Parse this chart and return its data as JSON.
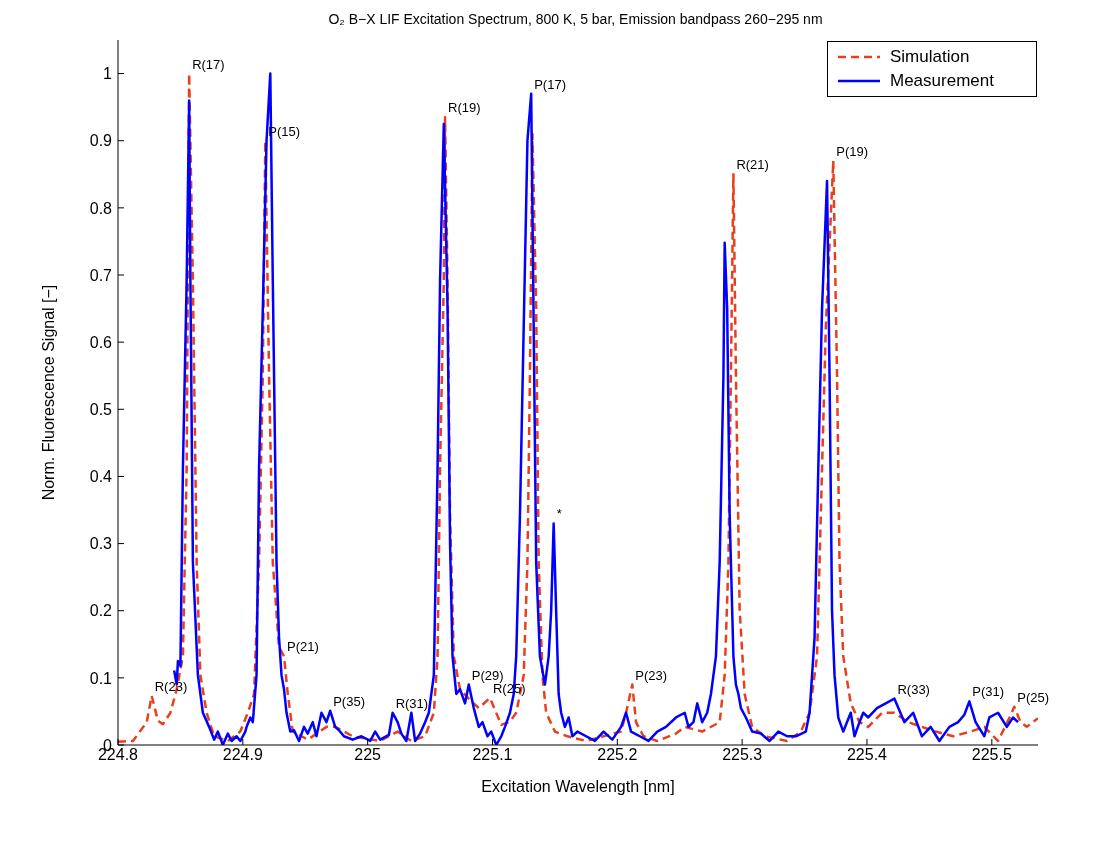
{
  "chart_data": {
    "type": "line",
    "title": "O₂ B−X LIF Excitation Spectrum, 800 K, 5 bar, Emission bandpass 260−295 nm",
    "xlabel": "Excitation Wavelength [nm]",
    "ylabel": "Norm. Fluorescence Signal [−]",
    "xlim": [
      224.8,
      225.537
    ],
    "xticks": [
      224.8,
      224.9,
      225,
      225.1,
      225.2,
      225.3,
      225.4,
      225.5
    ],
    "ylim": [
      0,
      1.05
    ],
    "yticks": [
      0,
      0.1,
      0.2,
      0.3,
      0.4,
      0.5,
      0.6,
      0.7,
      0.8,
      0.9,
      1
    ],
    "grid": false,
    "legend": "top right",
    "marker": "none",
    "series": [
      {
        "name": "Simulation",
        "color": "#e8401c",
        "line_style": "dashed",
        "x": [
          224.8,
          224.812,
          224.823,
          224.827,
          224.832,
          224.836,
          224.842,
          224.847,
          224.852,
          224.855,
          224.857,
          224.86,
          224.863,
          224.866,
          224.871,
          224.877,
          224.888,
          224.898,
          224.904,
          224.909,
          224.913,
          224.916,
          224.918,
          224.921,
          224.924,
          224.929,
          224.933,
          224.936,
          224.94,
          224.952,
          224.967,
          224.974,
          224.988,
          225.01,
          225.024,
          225.035,
          225.046,
          225.053,
          225.056,
          225.058,
          225.061,
          225.062,
          225.064,
          225.066,
          225.069,
          225.074,
          225.081,
          225.089,
          225.098,
          225.107,
          225.114,
          225.119,
          225.125,
          225.128,
          225.13,
          225.132,
          225.135,
          225.137,
          225.14,
          225.143,
          225.15,
          225.16,
          225.175,
          225.189,
          225.203,
          225.207,
          225.212,
          225.215,
          225.221,
          225.232,
          225.247,
          225.254,
          225.268,
          225.282,
          225.286,
          225.289,
          225.291,
          225.293,
          225.295,
          225.298,
          225.302,
          225.308,
          225.318,
          225.336,
          225.347,
          225.354,
          225.36,
          225.363,
          225.367,
          225.373,
          225.376,
          225.378,
          225.381,
          225.387,
          225.394,
          225.401,
          225.412,
          225.422,
          225.433,
          225.455,
          225.469,
          225.483,
          225.494,
          225.505,
          225.514,
          225.518,
          225.523,
          225.528,
          225.537
        ],
        "values": [
          0.005,
          0.006,
          0.034,
          0.073,
          0.036,
          0.031,
          0.048,
          0.083,
          0.132,
          0.413,
          1.0,
          0.689,
          0.272,
          0.104,
          0.048,
          0.013,
          0.006,
          0.02,
          0.048,
          0.076,
          0.272,
          0.552,
          0.9,
          0.552,
          0.272,
          0.146,
          0.132,
          0.076,
          0.02,
          0.008,
          0.027,
          0.027,
          0.013,
          0.006,
          0.02,
          0.006,
          0.013,
          0.048,
          0.132,
          0.413,
          0.692,
          0.935,
          0.692,
          0.342,
          0.132,
          0.083,
          0.069,
          0.055,
          0.07,
          0.03,
          0.035,
          0.048,
          0.104,
          0.272,
          0.552,
          0.91,
          0.65,
          0.272,
          0.104,
          0.048,
          0.02,
          0.013,
          0.006,
          0.013,
          0.02,
          0.048,
          0.09,
          0.034,
          0.013,
          0.006,
          0.017,
          0.027,
          0.02,
          0.034,
          0.104,
          0.272,
          0.552,
          0.85,
          0.552,
          0.202,
          0.076,
          0.027,
          0.013,
          0.006,
          0.02,
          0.048,
          0.132,
          0.342,
          0.622,
          0.87,
          0.552,
          0.272,
          0.132,
          0.062,
          0.034,
          0.027,
          0.048,
          0.048,
          0.034,
          0.02,
          0.013,
          0.02,
          0.027,
          0.006,
          0.04,
          0.057,
          0.034,
          0.027,
          0.04
        ]
      },
      {
        "name": "Measurement",
        "color": "#0000ff",
        "line_style": "solid",
        "x": [
          224.845,
          224.847,
          224.848,
          224.85,
          224.852,
          224.855,
          224.857,
          224.858,
          224.86,
          224.864,
          224.868,
          224.873,
          224.877,
          224.88,
          224.884,
          224.888,
          224.891,
          224.895,
          224.898,
          224.902,
          224.903,
          224.906,
          224.908,
          224.911,
          224.913,
          224.916,
          224.919,
          224.922,
          224.924,
          224.927,
          224.929,
          224.931,
          224.933,
          224.935,
          224.938,
          224.941,
          224.945,
          224.949,
          224.952,
          224.956,
          224.959,
          224.963,
          224.967,
          224.97,
          224.974,
          224.977,
          224.981,
          224.988,
          224.995,
          225.002,
          225.006,
          225.01,
          225.017,
          225.02,
          225.024,
          225.027,
          225.031,
          225.035,
          225.038,
          225.042,
          225.046,
          225.049,
          225.053,
          225.056,
          225.058,
          225.061,
          225.064,
          225.066,
          225.068,
          225.071,
          225.074,
          225.078,
          225.081,
          225.085,
          225.089,
          225.092,
          225.096,
          225.099,
          225.103,
          225.107,
          225.11,
          225.114,
          225.117,
          225.119,
          225.122,
          225.125,
          225.128,
          225.131,
          225.133,
          225.135,
          225.138,
          225.142,
          225.145,
          225.147,
          225.149,
          225.151,
          225.153,
          225.155,
          225.158,
          225.161,
          225.164,
          225.168,
          225.175,
          225.182,
          225.189,
          225.196,
          225.203,
          225.207,
          225.211,
          225.218,
          225.225,
          225.232,
          225.239,
          225.247,
          225.254,
          225.257,
          225.261,
          225.264,
          225.268,
          225.272,
          225.275,
          225.279,
          225.282,
          225.285,
          225.286,
          225.288,
          225.29,
          225.293,
          225.295,
          225.297,
          225.299,
          225.303,
          225.308,
          225.315,
          225.322,
          225.329,
          225.336,
          225.343,
          225.351,
          225.354,
          225.358,
          225.361,
          225.364,
          225.368,
          225.37,
          225.372,
          225.374,
          225.377,
          225.381,
          225.387,
          225.39,
          225.394,
          225.397,
          225.401,
          225.408,
          225.415,
          225.422,
          225.43,
          225.437,
          225.444,
          225.451,
          225.458,
          225.466,
          225.473,
          225.478,
          225.482,
          225.487,
          225.494,
          225.498,
          225.505,
          225.512,
          225.517,
          225.521
        ],
        "values": [
          0.111,
          0.09,
          0.125,
          0.118,
          0.412,
          0.692,
          0.96,
          0.692,
          0.272,
          0.104,
          0.048,
          0.027,
          0.008,
          0.02,
          0.0,
          0.017,
          0.006,
          0.013,
          0.006,
          0.02,
          0.027,
          0.041,
          0.034,
          0.104,
          0.412,
          0.65,
          0.9,
          1.0,
          0.692,
          0.272,
          0.16,
          0.104,
          0.083,
          0.048,
          0.02,
          0.022,
          0.006,
          0.027,
          0.017,
          0.034,
          0.013,
          0.048,
          0.034,
          0.051,
          0.027,
          0.022,
          0.013,
          0.008,
          0.013,
          0.006,
          0.02,
          0.008,
          0.015,
          0.048,
          0.034,
          0.017,
          0.006,
          0.048,
          0.006,
          0.017,
          0.034,
          0.048,
          0.104,
          0.412,
          0.692,
          0.925,
          0.65,
          0.3,
          0.132,
          0.076,
          0.083,
          0.062,
          0.09,
          0.055,
          0.027,
          0.034,
          0.013,
          0.02,
          0.0,
          0.013,
          0.027,
          0.048,
          0.076,
          0.132,
          0.342,
          0.622,
          0.9,
          0.97,
          0.622,
          0.272,
          0.132,
          0.09,
          0.132,
          0.2,
          0.33,
          0.2,
          0.076,
          0.048,
          0.027,
          0.041,
          0.013,
          0.02,
          0.013,
          0.006,
          0.02,
          0.008,
          0.027,
          0.048,
          0.02,
          0.013,
          0.006,
          0.02,
          0.027,
          0.041,
          0.048,
          0.027,
          0.034,
          0.062,
          0.034,
          0.048,
          0.076,
          0.132,
          0.272,
          0.55,
          0.748,
          0.65,
          0.342,
          0.132,
          0.09,
          0.076,
          0.055,
          0.041,
          0.02,
          0.017,
          0.006,
          0.02,
          0.013,
          0.013,
          0.02,
          0.048,
          0.16,
          0.412,
          0.65,
          0.84,
          0.552,
          0.2,
          0.104,
          0.041,
          0.02,
          0.048,
          0.013,
          0.034,
          0.048,
          0.041,
          0.055,
          0.062,
          0.069,
          0.034,
          0.048,
          0.013,
          0.027,
          0.006,
          0.027,
          0.034,
          0.045,
          0.065,
          0.034,
          0.013,
          0.041,
          0.048,
          0.027,
          0.041,
          0.034
        ]
      }
    ],
    "annotations": [
      {
        "text": "R(23)",
        "x": 224.827,
        "y": 0.073
      },
      {
        "text": "R(17)",
        "x": 224.857,
        "y": 1.0
      },
      {
        "text": "P(15)",
        "x": 224.918,
        "y": 0.9
      },
      {
        "text": "P(21)",
        "x": 224.933,
        "y": 0.132
      },
      {
        "text": "P(35)",
        "x": 224.97,
        "y": 0.051
      },
      {
        "text": "R(31)",
        "x": 225.02,
        "y": 0.048
      },
      {
        "text": "R(19)",
        "x": 225.062,
        "y": 0.935
      },
      {
        "text": "P(29)",
        "x": 225.081,
        "y": 0.09
      },
      {
        "text": "R(25)",
        "x": 225.098,
        "y": 0.07
      },
      {
        "text": "P(17)",
        "x": 225.131,
        "y": 0.97
      },
      {
        "text": "*",
        "x": 225.149,
        "y": 0.33
      },
      {
        "text": "P(23)",
        "x": 225.212,
        "y": 0.09
      },
      {
        "text": "R(21)",
        "x": 225.293,
        "y": 0.85
      },
      {
        "text": "P(19)",
        "x": 225.373,
        "y": 0.87
      },
      {
        "text": "R(33)",
        "x": 225.422,
        "y": 0.069
      },
      {
        "text": "P(31)",
        "x": 225.482,
        "y": 0.065
      },
      {
        "text": "P(25)",
        "x": 225.518,
        "y": 0.057
      }
    ]
  }
}
